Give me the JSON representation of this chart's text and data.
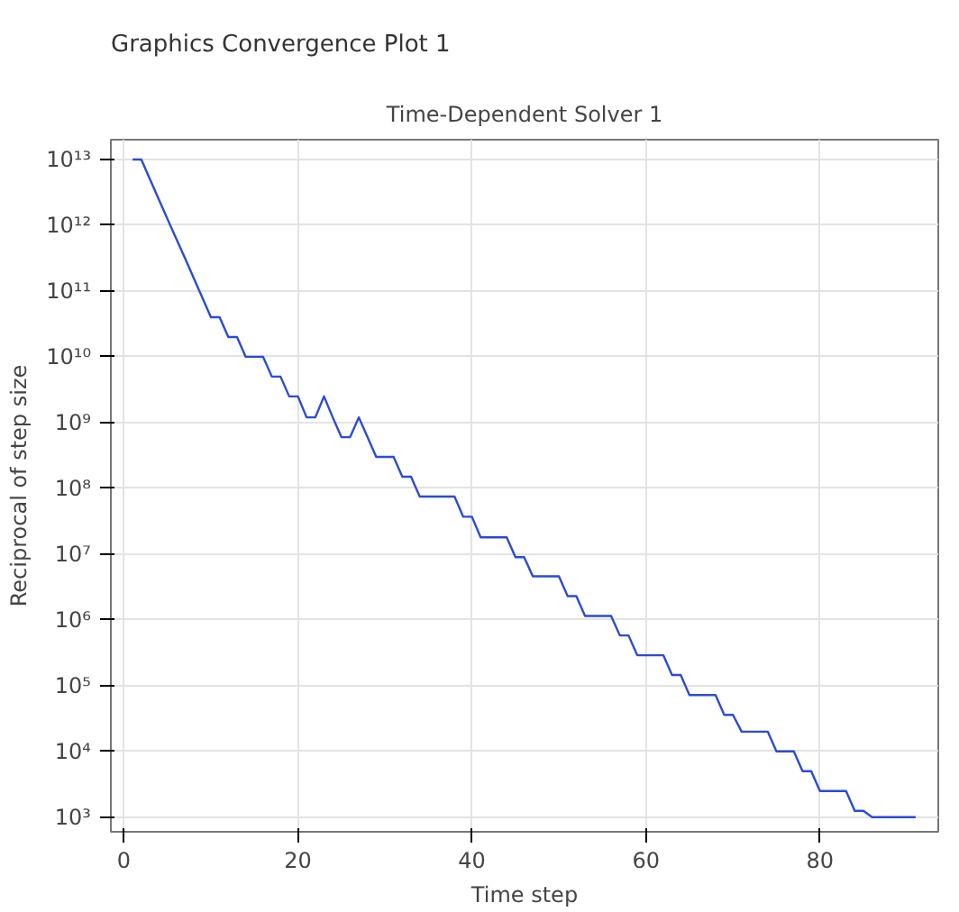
{
  "chart_data": {
    "type": "line",
    "title": "Time-Dependent Solver 1",
    "xlabel": "Time step",
    "ylabel": "Reciprocal of step size",
    "annotations": [
      "Graphics",
      "Convergence Plot 1"
    ],
    "log": "y",
    "grid": true,
    "marker": "none",
    "line_style": "solid",
    "xlim": [
      -1.5,
      93.6
    ],
    "xticks": [
      0,
      20,
      40,
      60,
      80
    ],
    "ylim": [
      600,
      20000000000000.0
    ],
    "yticks": [
      {
        "value": 1000.0,
        "label": "10³"
      },
      {
        "value": 10000.0,
        "label": "10⁴"
      },
      {
        "value": 100000.0,
        "label": "10⁵"
      },
      {
        "value": 1000000.0,
        "label": "10⁶"
      },
      {
        "value": 10000000.0,
        "label": "10⁷"
      },
      {
        "value": 100000000.0,
        "label": "10⁸"
      },
      {
        "value": 1000000000.0,
        "label": "10⁹"
      },
      {
        "value": 10000000000.0,
        "label": "10¹⁰"
      },
      {
        "value": 100000000000.0,
        "label": "10¹¹"
      },
      {
        "value": 1000000000000.0,
        "label": "10¹²"
      },
      {
        "value": 10000000000000.0,
        "label": "10¹³"
      }
    ],
    "x": [
      1,
      2,
      3,
      4,
      5,
      6,
      7,
      8,
      9,
      10,
      11,
      12,
      13,
      14,
      15,
      16,
      17,
      18,
      19,
      20,
      21,
      22,
      23,
      24,
      25,
      26,
      27,
      28,
      29,
      30,
      31,
      32,
      33,
      34,
      35,
      36,
      37,
      38,
      39,
      40,
      41,
      42,
      43,
      44,
      45,
      46,
      47,
      48,
      49,
      50,
      51,
      52,
      53,
      54,
      55,
      56,
      57,
      58,
      59,
      60,
      61,
      62,
      63,
      64,
      65,
      66,
      67,
      68,
      69,
      70,
      71,
      72,
      73,
      74,
      75,
      76,
      77,
      78,
      79,
      80,
      81,
      82,
      83,
      84,
      85,
      86,
      87,
      88,
      89,
      90,
      91
    ],
    "series": [
      {
        "color": "#2a4bd7",
        "values": [
          10000000000000.0,
          10000000000000.0,
          5000000000000.0,
          2500000000000.0,
          1250000000000.0,
          630000000000.0,
          320000000000.0,
          160000000000.0,
          80000000000.0,
          40000000000.0,
          40000000000.0,
          20000000000.0,
          20000000000.0,
          10000000000.0,
          10000000000.0,
          10000000000.0,
          5000000000.0,
          5000000000.0,
          2500000000.0,
          2500000000.0,
          1200000000.0,
          1200000000.0,
          2500000000.0,
          1200000000.0,
          600000000.0,
          600000000.0,
          1200000000.0,
          600000000.0,
          300000000.0,
          300000000.0,
          300000000.0,
          150000000.0,
          150000000.0,
          75000000.0,
          75000000.0,
          75000000.0,
          75000000.0,
          75000000.0,
          37000000.0,
          37000000.0,
          18000000.0,
          18000000.0,
          18000000.0,
          18000000.0,
          9000000.0,
          9000000.0,
          4600000.0,
          4600000.0,
          4600000.0,
          4600000.0,
          2300000.0,
          2300000.0,
          1150000.0,
          1150000.0,
          1150000.0,
          1150000.0,
          580000.0,
          580000.0,
          290000.0,
          290000.0,
          290000.0,
          290000.0,
          145000.0,
          145000.0,
          72000.0,
          72000.0,
          72000.0,
          72000.0,
          36000.0,
          36000.0,
          20000.0,
          20000.0,
          20000.0,
          20000.0,
          10000.0,
          10000.0,
          10000.0,
          5000.0,
          5000.0,
          2500.0,
          2500.0,
          2500.0,
          2500.0,
          1250.0,
          1250.0,
          1000.0,
          1000.0,
          1000.0,
          1000.0,
          1000.0,
          1000.0
        ]
      }
    ]
  }
}
